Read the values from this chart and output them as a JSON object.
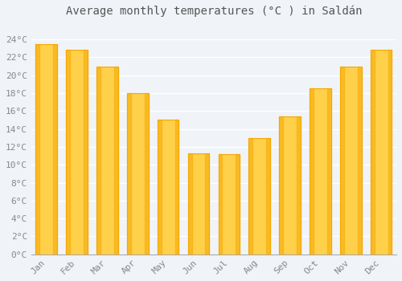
{
  "title": "Average monthly temperatures (°C ) in Saldán",
  "months": [
    "Jan",
    "Feb",
    "Mar",
    "Apr",
    "May",
    "Jun",
    "Jul",
    "Aug",
    "Sep",
    "Oct",
    "Nov",
    "Dec"
  ],
  "values": [
    23.5,
    22.8,
    21.0,
    18.0,
    15.0,
    11.3,
    11.2,
    13.0,
    15.4,
    18.5,
    21.0,
    22.8
  ],
  "bar_color_center": "#FFD04A",
  "bar_color_edge": "#F5A800",
  "ylim": [
    0,
    26
  ],
  "yticks": [
    0,
    2,
    4,
    6,
    8,
    10,
    12,
    14,
    16,
    18,
    20,
    22,
    24
  ],
  "background_color": "#F0F4F8",
  "plot_bg_color": "#F0F4F8",
  "grid_color": "#FFFFFF",
  "title_fontsize": 10,
  "tick_fontsize": 8,
  "tick_color": "#888888",
  "title_color": "#555555"
}
